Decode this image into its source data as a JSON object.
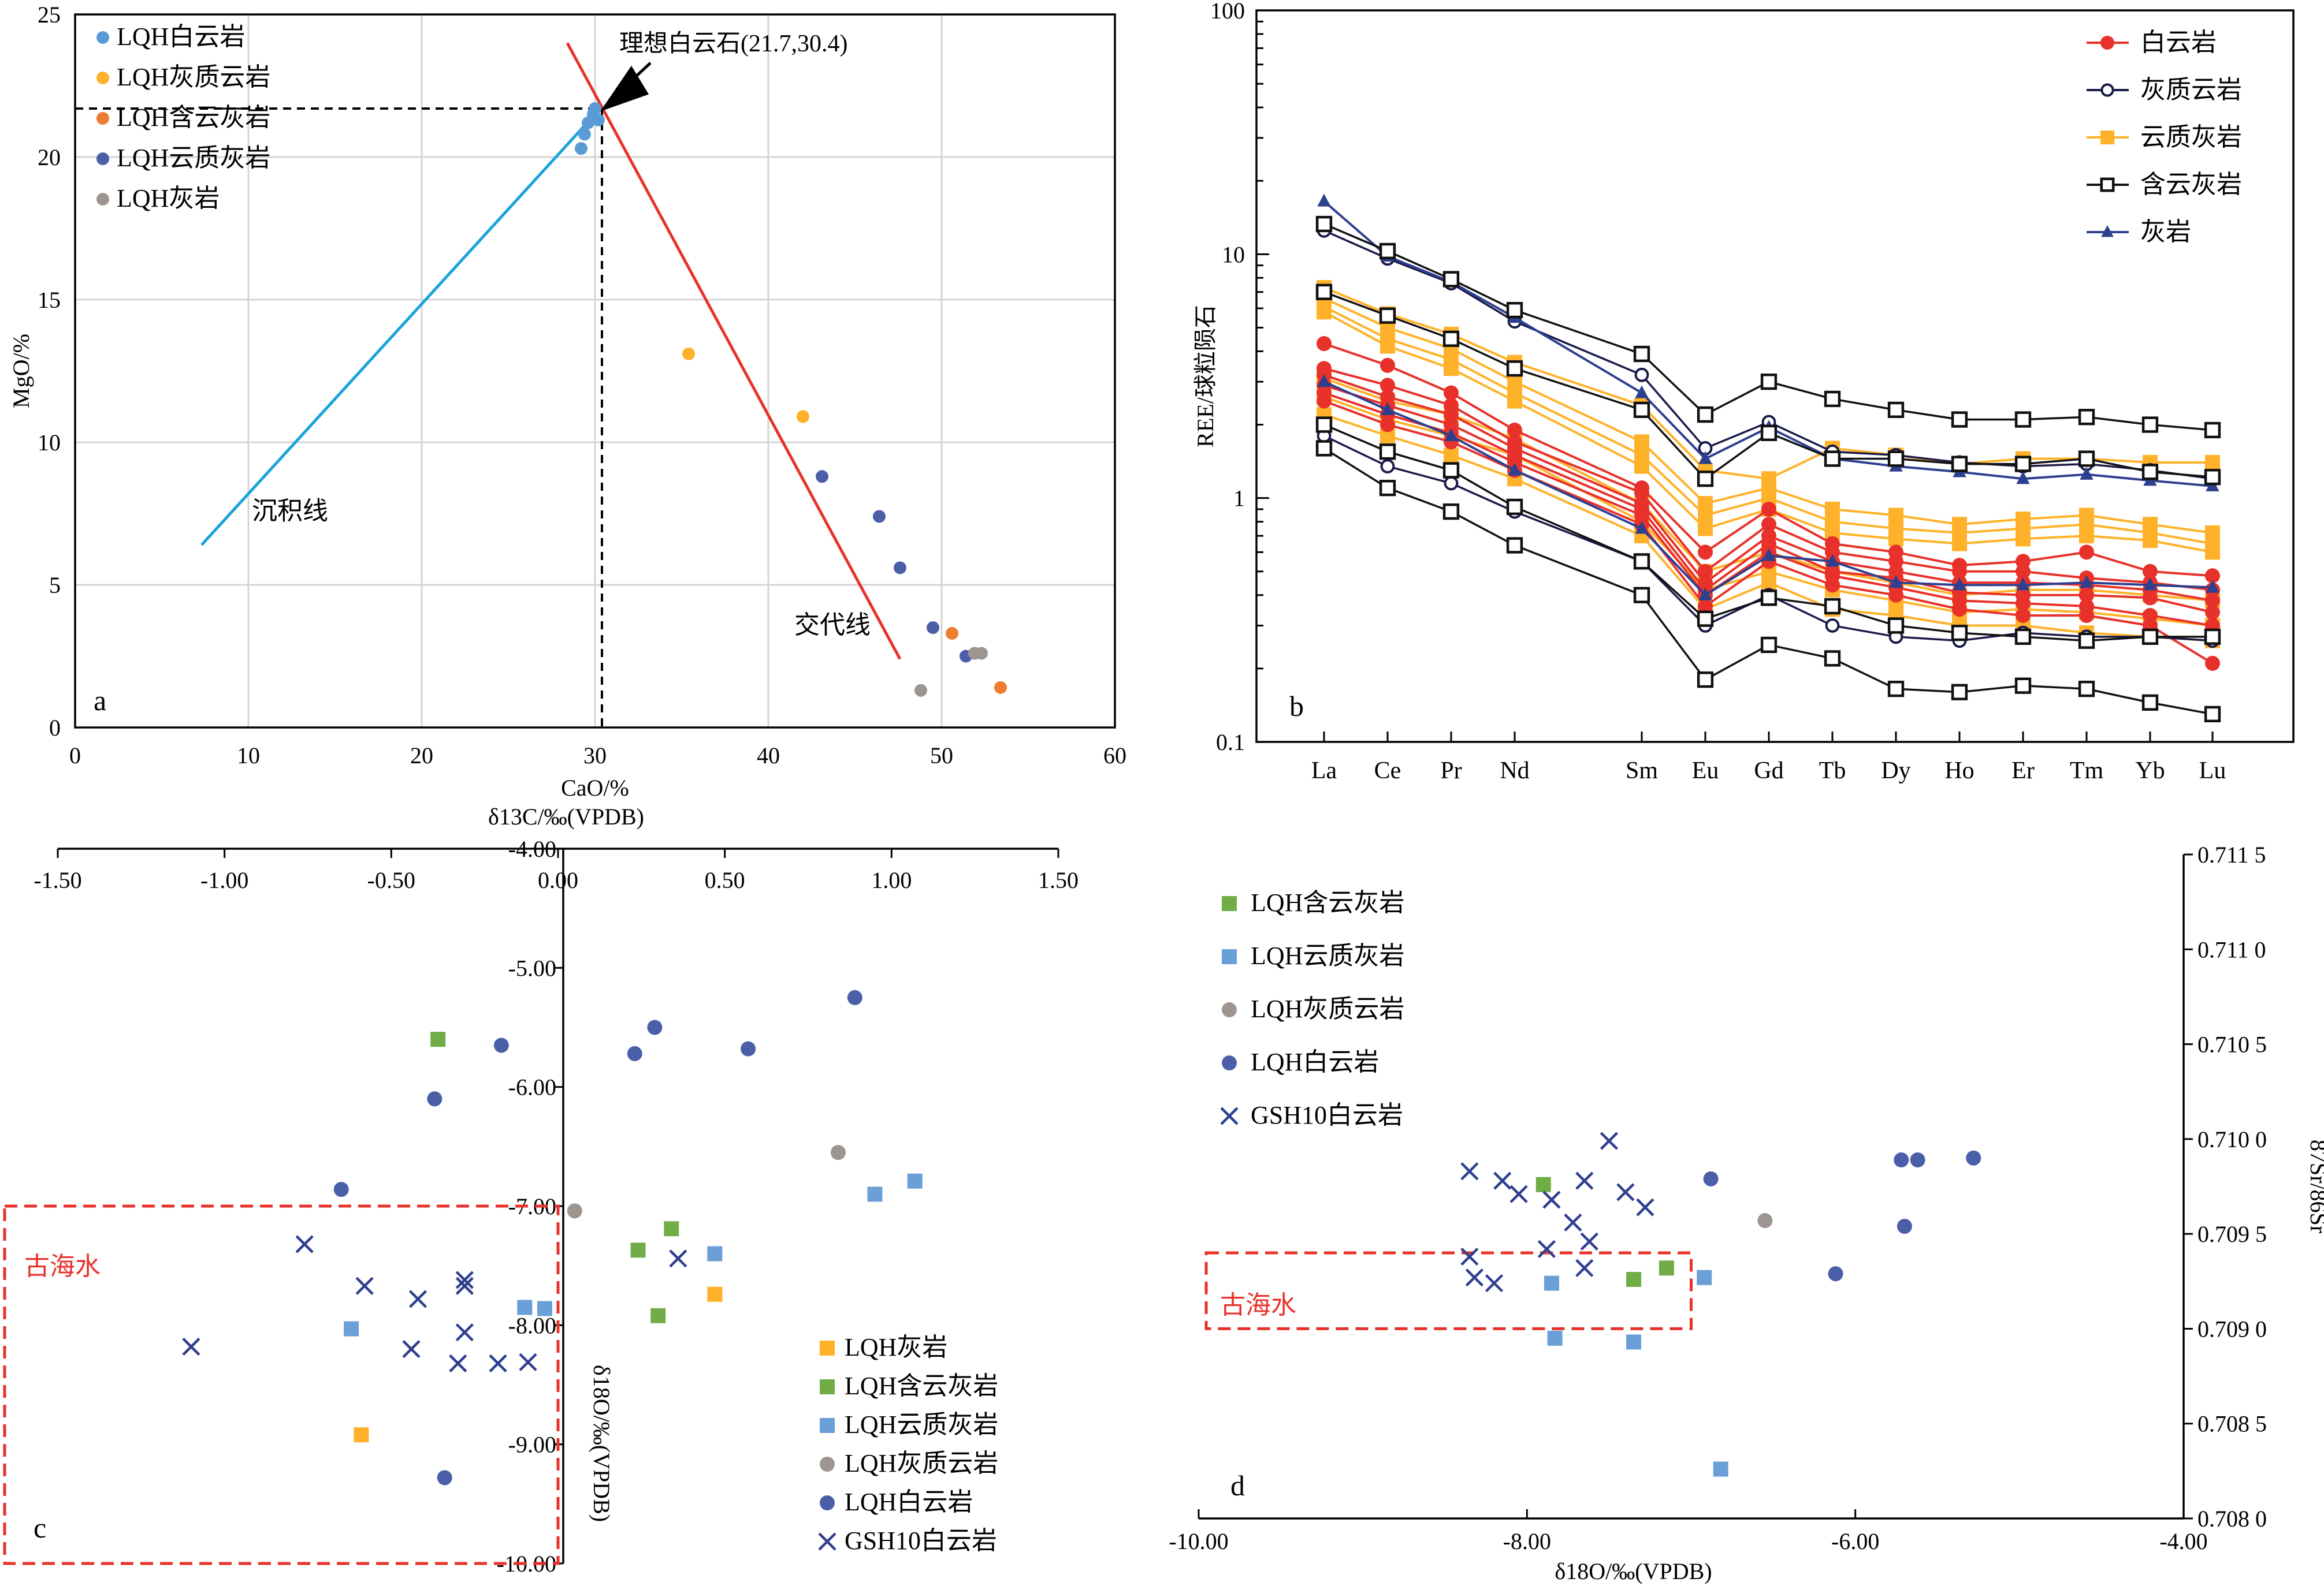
{
  "chart_data": [
    {
      "id": "a",
      "panel_label": "a",
      "type": "scatter",
      "xlabel": "CaO/%",
      "ylabel": "MgO/%",
      "xlim": [
        0,
        60
      ],
      "ylim": [
        0,
        25
      ],
      "xticks": [
        0,
        10,
        20,
        30,
        40,
        50,
        60
      ],
      "yticks": [
        0,
        5,
        10,
        15,
        20,
        25
      ],
      "grid": true,
      "legend_position": "top-left",
      "series": [
        {
          "name": "LQH白云岩",
          "color": "#5B9BD5",
          "points": [
            [
              29.2,
              20.3
            ],
            [
              29.4,
              20.8
            ],
            [
              29.6,
              21.2
            ],
            [
              29.9,
              21.5
            ],
            [
              30.2,
              21.3
            ],
            [
              30.0,
              21.7
            ]
          ]
        },
        {
          "name": "LQH灰质云岩",
          "color": "#FFB229",
          "points": [
            [
              35.4,
              13.1
            ],
            [
              42.0,
              10.9
            ]
          ]
        },
        {
          "name": "LQH含云灰岩",
          "color": "#ED7D31",
          "points": [
            [
              50.6,
              3.3
            ],
            [
              53.4,
              1.4
            ]
          ]
        },
        {
          "name": "LQH云质灰岩",
          "color": "#4A5FA8",
          "points": [
            [
              43.1,
              8.8
            ],
            [
              46.4,
              7.4
            ],
            [
              47.6,
              5.6
            ],
            [
              49.5,
              3.5
            ],
            [
              51.4,
              2.5
            ]
          ]
        },
        {
          "name": "LQH灰岩",
          "color": "#9E9590",
          "points": [
            [
              48.8,
              1.3
            ],
            [
              51.9,
              2.6
            ],
            [
              52.3,
              2.6
            ]
          ]
        }
      ],
      "lines": [
        {
          "label": "沉积线",
          "color": "#1AA3D9",
          "points": [
            [
              7.3,
              6.4
            ],
            [
              30.3,
              21.7
            ]
          ]
        },
        {
          "label": "交代线",
          "color": "#E8312A",
          "points": [
            [
              28.4,
              24.0
            ],
            [
              47.6,
              2.4
            ]
          ]
        }
      ],
      "ideal_point": {
        "label": "理想白云石(21.7,30.4)",
        "x": 30.4,
        "y": 21.7
      },
      "line_labels": {
        "sediment": "沉积线",
        "replacement": "交代线"
      }
    },
    {
      "id": "b",
      "panel_label": "b",
      "type": "line",
      "ylabel": "REE/球粒陨石",
      "yscale": "log",
      "ylim": [
        0.1,
        100
      ],
      "yticks": [
        "0.1",
        "1",
        "10",
        "100"
      ],
      "categories": [
        "La",
        "Ce",
        "Pr",
        "Nd",
        "Sm",
        "Eu",
        "Gd",
        "Tb",
        "Dy",
        "Ho",
        "Er",
        "Tm",
        "Yb",
        "Lu"
      ],
      "legend_position": "top-right",
      "legend": [
        {
          "name": "白云岩",
          "color": "#E8312A",
          "marker": "circle-filled"
        },
        {
          "name": "灰质云岩",
          "color": "#1A1A4A",
          "marker": "circle-open"
        },
        {
          "name": "云质灰岩",
          "color": "#FFB229",
          "marker": "square-filled"
        },
        {
          "name": "含云灰岩",
          "color": "#111111",
          "marker": "square-open"
        },
        {
          "name": "灰岩",
          "color": "#2E3F8F",
          "marker": "triangle-filled"
        }
      ],
      "series": [
        {
          "group": "白云岩",
          "values": [
            4.3,
            3.5,
            2.7,
            1.9,
            1.1,
            0.6,
            0.9,
            0.65,
            0.6,
            0.53,
            0.55,
            0.6,
            0.5,
            0.48
          ]
        },
        {
          "group": "白云岩",
          "values": [
            3.4,
            2.9,
            2.4,
            1.7,
            1.05,
            0.5,
            0.78,
            0.6,
            0.55,
            0.5,
            0.5,
            0.47,
            0.45,
            0.42
          ]
        },
        {
          "group": "白云岩",
          "values": [
            3.2,
            2.6,
            2.2,
            1.6,
            0.95,
            0.45,
            0.7,
            0.55,
            0.5,
            0.45,
            0.45,
            0.44,
            0.42,
            0.38
          ]
        },
        {
          "group": "白云岩",
          "values": [
            2.9,
            2.4,
            2.0,
            1.5,
            0.9,
            0.42,
            0.65,
            0.5,
            0.47,
            0.41,
            0.4,
            0.4,
            0.39,
            0.34
          ]
        },
        {
          "group": "白云岩",
          "values": [
            2.7,
            2.2,
            1.85,
            1.4,
            0.85,
            0.4,
            0.6,
            0.48,
            0.43,
            0.38,
            0.37,
            0.36,
            0.33,
            0.3
          ]
        },
        {
          "group": "白云岩",
          "values": [
            2.5,
            2.0,
            1.7,
            1.3,
            0.78,
            0.36,
            0.55,
            0.44,
            0.4,
            0.35,
            0.33,
            0.33,
            0.3,
            0.21
          ]
        },
        {
          "group": "灰质云岩",
          "values": [
            12.5,
            9.6,
            7.6,
            5.3,
            3.2,
            1.6,
            2.05,
            1.55,
            1.5,
            1.4,
            1.35,
            1.38,
            1.3,
            1.2
          ]
        },
        {
          "group": "灰质云岩",
          "values": [
            1.8,
            1.35,
            1.15,
            0.88,
            0.55,
            0.3,
            0.4,
            0.3,
            0.27,
            0.26,
            0.28,
            0.27,
            0.27,
            0.26
          ]
        },
        {
          "group": "云质灰岩",
          "values": [
            7.3,
            5.7,
            4.7,
            3.6,
            2.4,
            1.3,
            1.2,
            1.6,
            1.5,
            1.38,
            1.45,
            1.45,
            1.4,
            1.4
          ]
        },
        {
          "group": "云质灰岩",
          "values": [
            6.6,
            5.0,
            4.1,
            3.0,
            1.7,
            0.95,
            1.1,
            0.9,
            0.85,
            0.78,
            0.82,
            0.85,
            0.78,
            0.72
          ]
        },
        {
          "group": "云质灰岩",
          "values": [
            6.1,
            4.5,
            3.7,
            2.7,
            1.5,
            0.85,
            1.0,
            0.8,
            0.75,
            0.72,
            0.75,
            0.78,
            0.72,
            0.65
          ]
        },
        {
          "group": "云质灰岩",
          "values": [
            5.8,
            4.2,
            3.4,
            2.5,
            1.35,
            0.75,
            0.9,
            0.72,
            0.68,
            0.65,
            0.68,
            0.7,
            0.67,
            0.6
          ]
        },
        {
          "group": "云质灰岩",
          "values": [
            3.1,
            2.5,
            2.2,
            1.75,
            0.95,
            0.5,
            0.6,
            0.5,
            0.45,
            0.4,
            0.42,
            0.42,
            0.4,
            0.38
          ]
        },
        {
          "group": "云质灰岩",
          "values": [
            2.6,
            2.1,
            1.8,
            1.5,
            0.8,
            0.42,
            0.5,
            0.42,
            0.38,
            0.34,
            0.35,
            0.34,
            0.32,
            0.3
          ]
        },
        {
          "group": "云质灰岩",
          "values": [
            2.2,
            1.8,
            1.5,
            1.2,
            0.7,
            0.35,
            0.45,
            0.35,
            0.33,
            0.3,
            0.3,
            0.28,
            0.27,
            0.26
          ]
        },
        {
          "group": "含云灰岩",
          "values": [
            13.3,
            10.3,
            7.9,
            5.9,
            3.9,
            2.2,
            3.0,
            2.55,
            2.3,
            2.1,
            2.1,
            2.15,
            2.0,
            1.9
          ]
        },
        {
          "group": "含云灰岩",
          "values": [
            7.0,
            5.6,
            4.5,
            3.4,
            2.3,
            1.2,
            1.85,
            1.45,
            1.45,
            1.38,
            1.38,
            1.45,
            1.28,
            1.22
          ]
        },
        {
          "group": "含云灰岩",
          "values": [
            2.0,
            1.55,
            1.3,
            0.92,
            0.55,
            0.32,
            0.39,
            0.36,
            0.3,
            0.28,
            0.27,
            0.26,
            0.27,
            0.27
          ]
        },
        {
          "group": "含云灰岩",
          "values": [
            1.6,
            1.1,
            0.88,
            0.64,
            0.4,
            0.18,
            0.25,
            0.22,
            0.165,
            0.16,
            0.17,
            0.165,
            0.145,
            0.13
          ]
        },
        {
          "group": "灰岩",
          "values": [
            16.5,
            9.8,
            7.7,
            5.5,
            2.7,
            1.45,
            1.95,
            1.45,
            1.35,
            1.28,
            1.2,
            1.25,
            1.18,
            1.12
          ]
        },
        {
          "group": "灰岩",
          "values": [
            3.0,
            2.3,
            1.8,
            1.3,
            0.75,
            0.4,
            0.58,
            0.55,
            0.45,
            0.44,
            0.44,
            0.45,
            0.44,
            0.43
          ]
        }
      ]
    },
    {
      "id": "c",
      "panel_label": "c",
      "type": "scatter",
      "xlabel": "δ13C/‰(VPDB)",
      "ylabel": "δ18O/‰(VPDB)",
      "xlim": [
        -1.5,
        1.5
      ],
      "ylim": [
        -10,
        -4
      ],
      "xticks": [
        "-1.50",
        "-1.00",
        "-0.50",
        "0.00",
        "0.50",
        "1.00",
        "1.50"
      ],
      "yticks": [
        "-4.00",
        "-5.00",
        "-6.00",
        "-7.00",
        "-8.00",
        "-9.00",
        "-10.00"
      ],
      "legend_position": "bottom-right",
      "region": {
        "label": "古海水",
        "x": [
          -1.65,
          0.0
        ],
        "y": [
          -10.0,
          -7.0
        ]
      },
      "series": [
        {
          "name": "LQH灰岩",
          "color": "#FFB229",
          "marker": "square",
          "points": [
            [
              -0.59,
              -8.92
            ],
            [
              0.47,
              -7.74
            ]
          ]
        },
        {
          "name": "LQH含云灰岩",
          "color": "#70AD47",
          "marker": "square",
          "points": [
            [
              -0.36,
              -5.6
            ],
            [
              0.24,
              -7.37
            ],
            [
              0.34,
              -7.19
            ],
            [
              0.3,
              -7.92
            ]
          ]
        },
        {
          "name": "LQH云质灰岩",
          "color": "#6A9FD8",
          "marker": "square",
          "points": [
            [
              -0.62,
              -8.03
            ],
            [
              -0.1,
              -7.85
            ],
            [
              -0.04,
              -7.86
            ],
            [
              0.47,
              -7.4
            ],
            [
              0.95,
              -6.9
            ],
            [
              1.07,
              -6.79
            ]
          ]
        },
        {
          "name": "LQH灰质云岩",
          "color": "#9E9590",
          "marker": "circle",
          "points": [
            [
              0.05,
              -7.04
            ],
            [
              0.84,
              -6.55
            ]
          ]
        },
        {
          "name": "LQH白云岩",
          "color": "#4A5FA8",
          "marker": "circle",
          "points": [
            [
              -0.65,
              -6.86
            ],
            [
              -0.37,
              -6.1
            ],
            [
              -0.17,
              -5.65
            ],
            [
              0.23,
              -5.72
            ],
            [
              0.29,
              -5.5
            ],
            [
              0.57,
              -5.68
            ],
            [
              0.89,
              -5.25
            ],
            [
              -0.34,
              -9.28
            ]
          ]
        },
        {
          "name": "GSH10白云岩",
          "color": "#2E3F8F",
          "marker": "x",
          "points": [
            [
              -1.1,
              -8.18
            ],
            [
              -0.76,
              -7.32
            ],
            [
              -0.58,
              -7.67
            ],
            [
              -0.42,
              -7.78
            ],
            [
              -0.44,
              -8.2
            ],
            [
              -0.28,
              -7.62
            ],
            [
              -0.28,
              -7.67
            ],
            [
              -0.3,
              -8.32
            ],
            [
              -0.28,
              -8.06
            ],
            [
              -0.18,
              -8.32
            ],
            [
              -0.09,
              -8.31
            ],
            [
              0.36,
              -7.44
            ]
          ]
        }
      ]
    },
    {
      "id": "d",
      "panel_label": "d",
      "type": "scatter",
      "xlabel": "δ18O/‰(VPDB)",
      "ylabel": "87Sr/86Sr",
      "xlim": [
        -10,
        -4
      ],
      "ylim": [
        0.708,
        0.7115
      ],
      "xticks": [
        "-10.00",
        "-8.00",
        "-6.00",
        "-4.00"
      ],
      "yticks": [
        "0.708 0",
        "0.708 5",
        "0.709 0",
        "0.709 5",
        "0.710 0",
        "0.710 5",
        "0.711 0",
        "0.711 5"
      ],
      "legend_position": "top-left",
      "region": {
        "label": "古海水",
        "x": [
          -10.0,
          -7.0
        ],
        "y": [
          0.709,
          0.7094
        ]
      },
      "series": [
        {
          "name": "LQH含云灰岩",
          "color": "#70AD47",
          "marker": "square",
          "points": [
            [
              -7.9,
              0.70976
            ],
            [
              -7.35,
              0.70926
            ],
            [
              -7.15,
              0.70932
            ]
          ]
        },
        {
          "name": "LQH云质灰岩",
          "color": "#6A9FD8",
          "marker": "square",
          "points": [
            [
              -7.85,
              0.70924
            ],
            [
              -7.83,
              0.70895
            ],
            [
              -7.35,
              0.70893
            ],
            [
              -6.92,
              0.70927
            ],
            [
              -6.82,
              0.70826
            ]
          ]
        },
        {
          "name": "LQH灰质云岩",
          "color": "#9E9590",
          "marker": "circle",
          "points": [
            [
              -6.55,
              0.70957
            ]
          ]
        },
        {
          "name": "LQH白云岩",
          "color": "#4A5FA8",
          "marker": "circle",
          "points": [
            [
              -6.88,
              0.70979
            ],
            [
              -6.12,
              0.70929
            ],
            [
              -5.72,
              0.70989
            ],
            [
              -5.62,
              0.70989
            ],
            [
              -5.28,
              0.7099
            ],
            [
              -5.7,
              0.70954
            ]
          ]
        },
        {
          "name": "GSH10白云岩",
          "color": "#2E3F8F",
          "marker": "x",
          "points": [
            [
              -8.35,
              0.70983
            ],
            [
              -8.15,
              0.70978
            ],
            [
              -8.05,
              0.70971
            ],
            [
              -7.85,
              0.70968
            ],
            [
              -7.72,
              0.70956
            ],
            [
              -7.65,
              0.70978
            ],
            [
              -7.5,
              0.70999
            ],
            [
              -7.4,
              0.70972
            ],
            [
              -7.28,
              0.70964
            ],
            [
              -8.35,
              0.70938
            ],
            [
              -8.32,
              0.70927
            ],
            [
              -8.2,
              0.70924
            ],
            [
              -7.88,
              0.70942
            ],
            [
              -7.65,
              0.70932
            ],
            [
              -7.62,
              0.70946
            ]
          ]
        }
      ]
    }
  ]
}
